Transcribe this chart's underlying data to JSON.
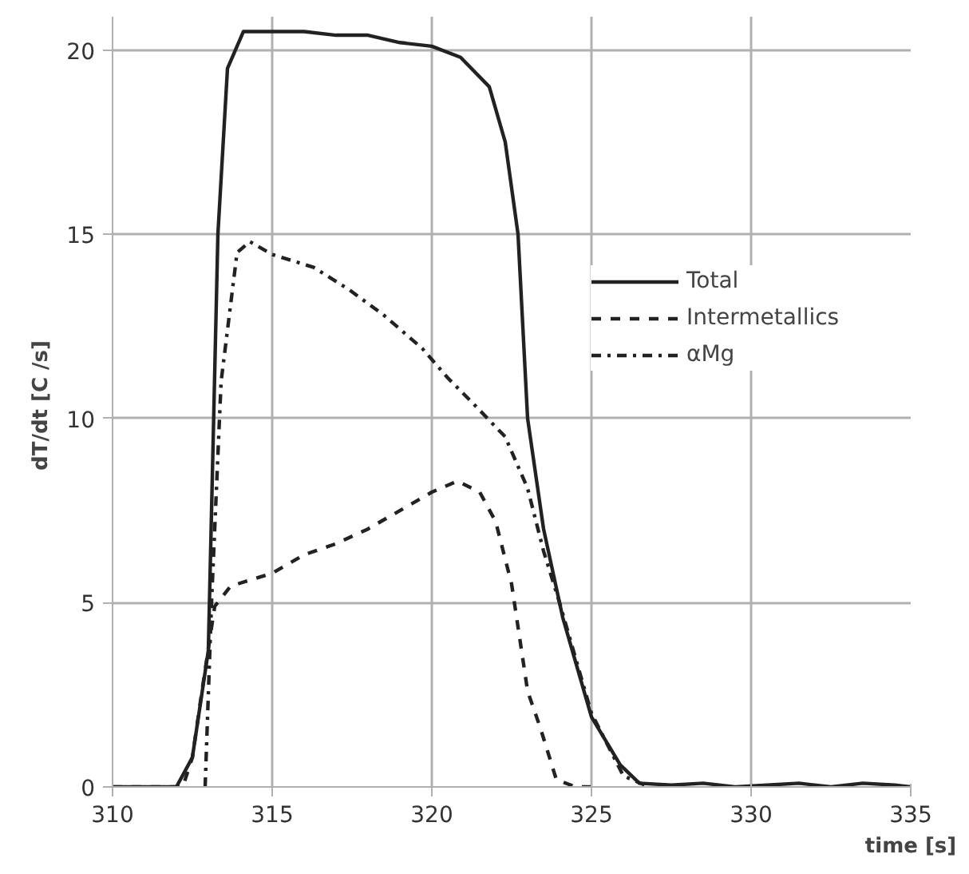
{
  "chart_data": {
    "type": "line",
    "xlabel": "time [s]",
    "ylabel": "dT/dt  [C /s]",
    "xlim": [
      310,
      335
    ],
    "ylim": [
      0,
      20.9
    ],
    "xticks": [
      310,
      315,
      320,
      325,
      330,
      335
    ],
    "yticks": [
      0,
      5,
      10,
      15,
      20
    ],
    "grid": true,
    "legend": "top right",
    "marker": "none",
    "series": [
      {
        "name": "Total",
        "color": "#222222",
        "line_style": "solid",
        "x": [
          310,
          311,
          312,
          312.5,
          313,
          313.3,
          313.6,
          314.1,
          315,
          316,
          317,
          318,
          319,
          320,
          320.9,
          321.8,
          322.3,
          322.7,
          323,
          323.5,
          324.1,
          325,
          325.9,
          326.5,
          327.5,
          328.5,
          329.5,
          330.5,
          331.5,
          332.5,
          333.5,
          334.5,
          335
        ],
        "values": [
          0,
          0,
          0,
          0.8,
          3.7,
          15,
          19.5,
          20.5,
          20.5,
          20.5,
          20.4,
          20.4,
          20.2,
          20.1,
          19.8,
          19,
          17.5,
          15,
          10,
          7,
          4.6,
          1.9,
          0.6,
          0.1,
          0.05,
          0.1,
          0,
          0.05,
          0.1,
          0,
          0.1,
          0.05,
          0
        ]
      },
      {
        "name": "Intermetallics",
        "color": "#222222",
        "line_style": "dashed",
        "x": [
          310,
          312.2,
          312.5,
          312.8,
          313.2,
          313.7,
          315,
          316,
          317,
          318,
          319,
          320,
          320.8,
          321.5,
          322,
          322.5,
          323,
          323.4,
          323.9,
          324.5,
          325
        ],
        "values": [
          0,
          0,
          0.8,
          2.6,
          4.9,
          5.45,
          5.8,
          6.3,
          6.6,
          7,
          7.5,
          8,
          8.3,
          8,
          7.2,
          5.5,
          2.6,
          1.6,
          0.2,
          0,
          0
        ]
      },
      {
        "name": "αMg",
        "color": "#222222",
        "line_style": "dashdot",
        "x": [
          312.9,
          313.1,
          313.4,
          313.9,
          314.3,
          315,
          316.3,
          317.4,
          318.5,
          319.7,
          320.5,
          321.3,
          322.3,
          323,
          323.5,
          324,
          325,
          326,
          326.8
        ],
        "values": [
          0,
          5,
          11,
          14.5,
          14.8,
          14.45,
          14.1,
          13.5,
          12.8,
          11.9,
          11.1,
          10.4,
          9.5,
          8.1,
          6.4,
          5,
          2,
          0.3,
          0
        ]
      }
    ]
  }
}
